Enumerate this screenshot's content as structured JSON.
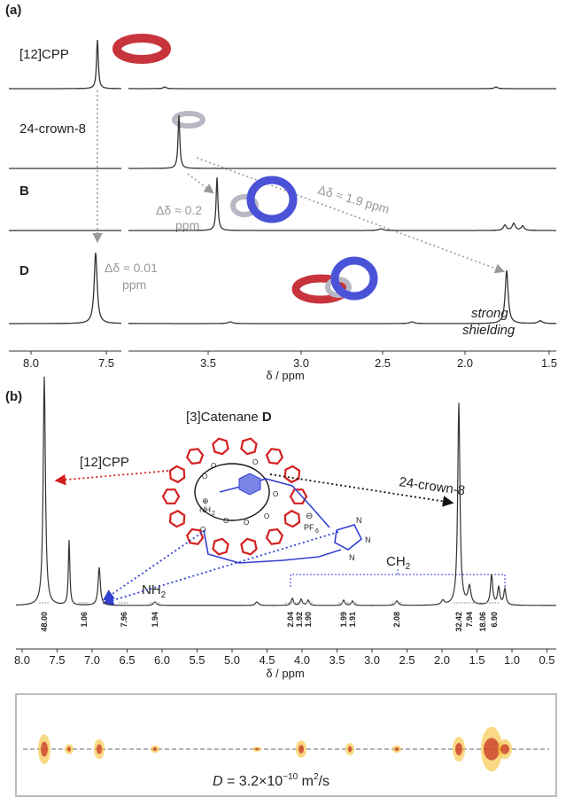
{
  "panel_a": {
    "label": "(a)",
    "spectra": [
      "[12]CPP",
      "24-crown-8",
      "B",
      "D"
    ],
    "delta_b_value": "Δδ ≈ 0.2",
    "delta_b_unit": "ppm",
    "delta_cross": "Δδ ≈ 1.9 ppm",
    "delta_d_value": "Δδ ≈ 0.01",
    "delta_d_unit": "ppm",
    "shielding_1": "strong",
    "shielding_2": "shielding",
    "x_ticks": [
      "8.0",
      "7.5",
      "3.5",
      "3.0",
      "2.5",
      "2.0",
      "1.5"
    ],
    "x_axis_label": "δ / ppm"
  },
  "panel_b": {
    "label": "(b)",
    "title": "[3]Catenane ",
    "title_bold": "D",
    "cpp": "[12]CPP",
    "crown": "24-crown-8",
    "nh": "NH",
    "nh_sub": "2",
    "ch": "CH",
    "ch_sub": "2",
    "molecule": {
      "amine": "NH",
      "amine_sub": "2",
      "plus": "⊕",
      "minus": "⊖",
      "anion": "PF",
      "anion_sub": "6",
      "nitrogens": [
        "N",
        "N",
        "N"
      ],
      "oxygens": [
        "O",
        "O",
        "O",
        "O",
        "O",
        "O",
        "O",
        "O"
      ]
    },
    "integrals": [
      "48.00",
      "1.06",
      "7.96",
      "1.94",
      "2.04",
      "1.92",
      "1.90",
      "1.99",
      "1.91",
      "2.08",
      "32.42",
      "7.94",
      "18.06",
      "6.90"
    ],
    "x_ticks": [
      "8.0",
      "7.5",
      "7.0",
      "6.5",
      "6.0",
      "5.5",
      "5.0",
      "4.5",
      "4.0",
      "3.5",
      "3.0",
      "2.5",
      "2.0",
      "1.5",
      "1.0",
      "0.5"
    ],
    "x_axis_label": "δ / ppm"
  },
  "dosy": {
    "symbol": "D",
    "equals": " = 3.2×10",
    "exponent": "−10",
    "unit": " m",
    "unit_exp": "2",
    "unit_tail": "/s"
  }
}
